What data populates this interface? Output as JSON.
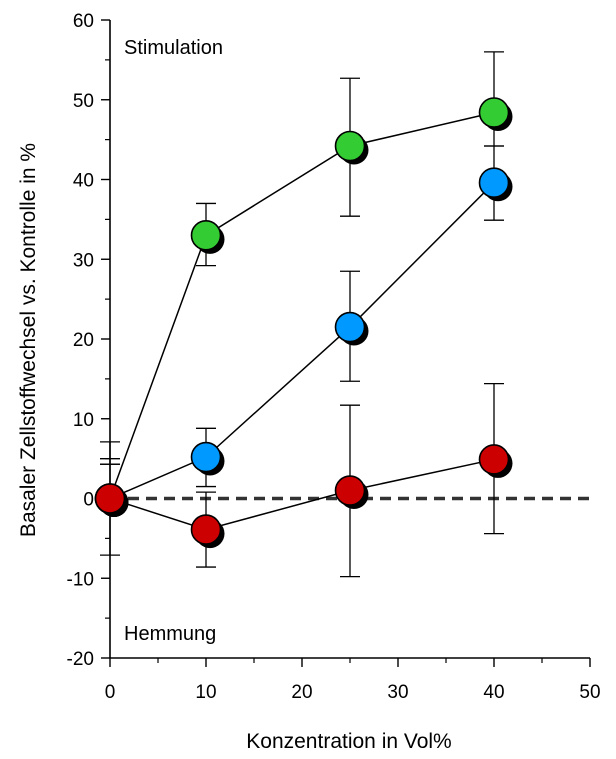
{
  "chart_data": {
    "type": "line",
    "title": "",
    "xlabel": "Konzentration in Vol%",
    "ylabel": "Basaler Zellstoffwechsel vs. Kontrolle in %",
    "xlim": [
      0,
      50
    ],
    "ylim": [
      -20,
      60
    ],
    "xticks": [
      0,
      10,
      20,
      30,
      40,
      50
    ],
    "yticks": [
      -20,
      -10,
      0,
      10,
      20,
      30,
      40,
      50,
      60
    ],
    "grid": false,
    "legend": "none",
    "reference_line": {
      "y": 0,
      "style": "dashed"
    },
    "annotations": {
      "top": "Stimulation",
      "bottom": "Hemmung"
    },
    "series": [
      {
        "name": "green",
        "color": "#33cc33",
        "x": [
          0,
          10,
          25,
          40
        ],
        "y": [
          0,
          33,
          44.2,
          48.4
        ],
        "err_low": [
          5,
          29.2,
          35.4,
          44.2
        ],
        "err_high": [
          5,
          37,
          52.7,
          56
        ]
      },
      {
        "name": "blue",
        "color": "#0099ff",
        "x": [
          0,
          10,
          25,
          40
        ],
        "y": [
          0,
          5.2,
          21.5,
          39.6
        ],
        "err_low": [
          4.3,
          1.5,
          14.7,
          34.9
        ],
        "err_high": [
          4.3,
          8.8,
          28.5,
          44.2
        ]
      },
      {
        "name": "red",
        "color": "#cc0000",
        "x": [
          0,
          10,
          25,
          40
        ],
        "y": [
          0,
          -3.9,
          1,
          4.9
        ],
        "err_low": [
          -7.1,
          -8.6,
          -9.8,
          -4.4
        ],
        "err_high": [
          7.1,
          0.8,
          11.7,
          14.4
        ]
      }
    ]
  }
}
